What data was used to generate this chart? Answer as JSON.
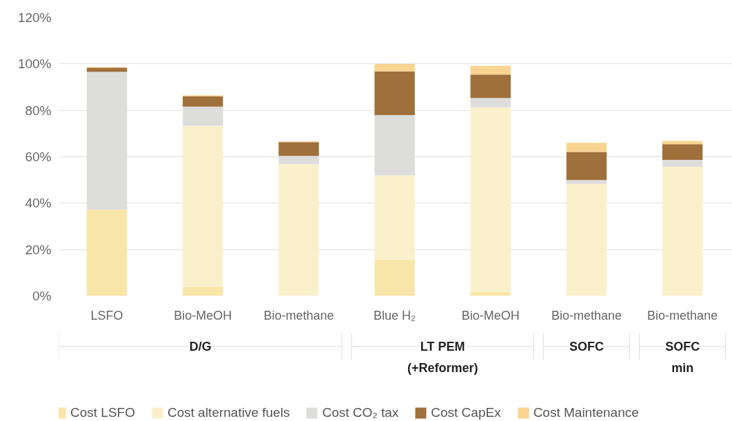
{
  "chart_data": {
    "type": "bar",
    "stacked": true,
    "categories": [
      "LSFO",
      "Bio-MeOH",
      "Bio-methane",
      "Blue H₂",
      "Bio-MeOH",
      "Bio-methane",
      "Bio-methane"
    ],
    "series": [
      {
        "name": "Cost LSFO",
        "color": "#f8e5a8",
        "values": [
          37.2,
          3.9,
          0,
          15.7,
          1.6,
          0,
          0
        ]
      },
      {
        "name": "Cost alternative fuels",
        "color": "#faf0cb",
        "values": [
          0,
          69.5,
          56.8,
          36.3,
          79.7,
          48.3,
          55.7
        ]
      },
      {
        "name": "Cost CO₂ tax",
        "color": "#dddddc",
        "values": [
          59.4,
          8.2,
          3.6,
          26.0,
          4.0,
          1.7,
          3.0
        ]
      },
      {
        "name": "Cost CapEx",
        "color": "#a0703c",
        "values": [
          1.8,
          4.4,
          5.9,
          18.8,
          10.1,
          12.1,
          6.7
        ]
      },
      {
        "name": "Cost Maintenance",
        "color": "#f8d491",
        "values": [
          0.3,
          0.5,
          0.3,
          3.2,
          3.8,
          3.9,
          1.4
        ]
      }
    ],
    "ylim": [
      0,
      120
    ],
    "yticks": [
      {
        "value": 0,
        "label": "0%"
      },
      {
        "value": 20,
        "label": "20%"
      },
      {
        "value": 40,
        "label": "40%"
      },
      {
        "value": 60,
        "label": "60%"
      },
      {
        "value": 80,
        "label": "80%"
      },
      {
        "value": 100,
        "label": "100%"
      },
      {
        "value": 120,
        "label": "120%"
      }
    ],
    "grid": "y",
    "legend": "bottom",
    "annotations": [
      "D/G",
      "LT PEM\n(+Reformer)",
      "SOFC",
      "SOFC\nmin"
    ]
  }
}
